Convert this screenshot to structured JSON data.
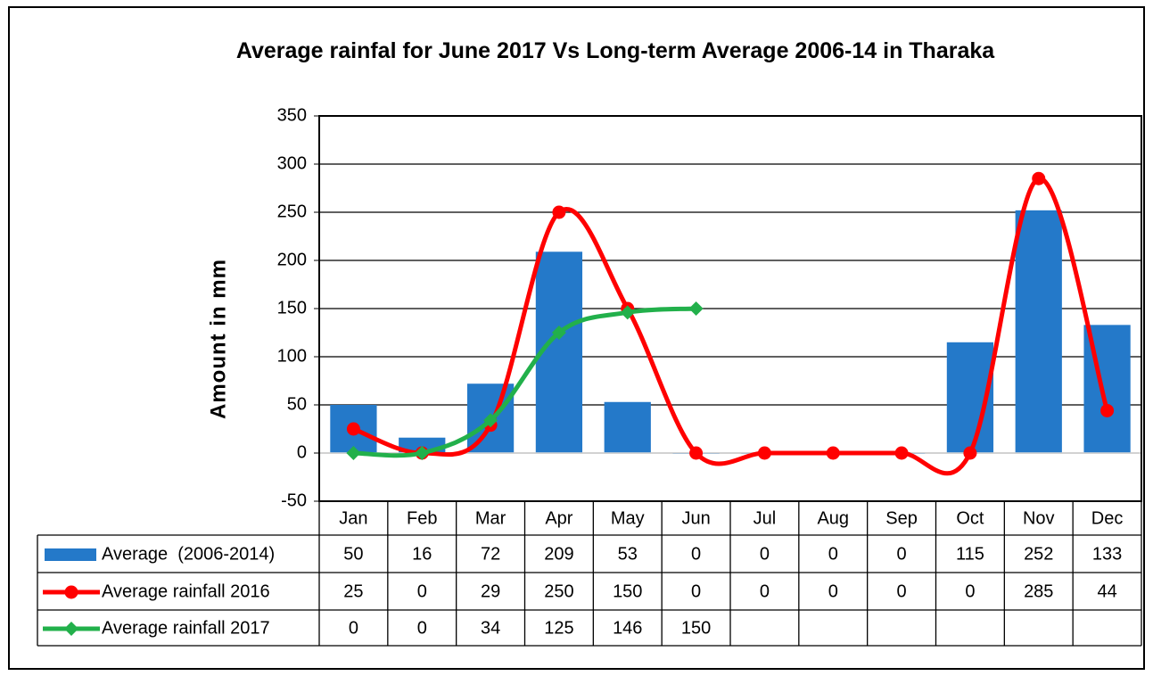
{
  "chart_data": {
    "type": "combo",
    "title": "Average rainfal for June 2017 Vs Long-term Average 2006-14 in Tharaka",
    "y_label": "Amount in mm",
    "categories": [
      "Jan",
      "Feb",
      "Mar",
      "Apr",
      "May",
      "Jun",
      "Jul",
      "Aug",
      "Sep",
      "Oct",
      "Nov",
      "Dec"
    ],
    "series": [
      {
        "name": "Average  (2006-2014)",
        "kind": "bar",
        "color": "#2479c9",
        "values": [
          50,
          16,
          72,
          209,
          53,
          0,
          0,
          0,
          0,
          115,
          252,
          133
        ]
      },
      {
        "name": "Average rainfall 2016",
        "kind": "line",
        "marker": "circle",
        "smooth": true,
        "color": "#ff0000",
        "values": [
          25,
          0,
          29,
          250,
          150,
          0,
          0,
          0,
          0,
          0,
          285,
          44
        ]
      },
      {
        "name": "Average rainfall 2017",
        "kind": "line",
        "marker": "diamond",
        "smooth": true,
        "color": "#22b04b",
        "values": [
          0,
          0,
          34,
          125,
          146,
          150,
          null,
          null,
          null,
          null,
          null,
          null
        ]
      }
    ],
    "ylim": [
      -50,
      350
    ],
    "yticks": [
      -50,
      0,
      50,
      100,
      150,
      200,
      250,
      300,
      350
    ],
    "grid": true,
    "data_table": true
  }
}
